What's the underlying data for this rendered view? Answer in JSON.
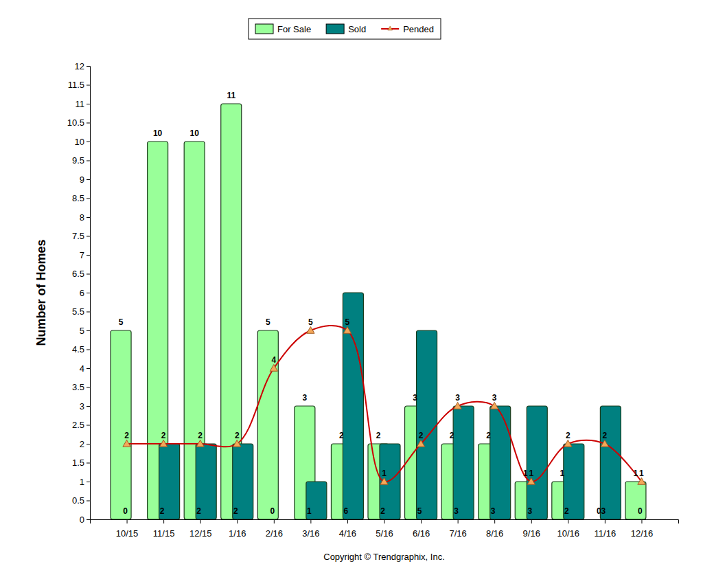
{
  "chart_data": {
    "type": "bar",
    "y_label": "Number of Homes",
    "annotations": [
      "Copyright © Trendgraphix, Inc."
    ],
    "categories": [
      "10/15",
      "11/15",
      "12/15",
      "1/16",
      "2/16",
      "3/16",
      "4/16",
      "5/16",
      "6/16",
      "7/16",
      "8/16",
      "9/16",
      "10/16",
      "11/16",
      "12/16"
    ],
    "series": [
      {
        "name": "For Sale",
        "type": "bar",
        "color": "#99ff99",
        "values": [
          5,
          10,
          10,
          11,
          5,
          3,
          2,
          2,
          3,
          2,
          2,
          1,
          1,
          0,
          1
        ]
      },
      {
        "name": "Sold",
        "type": "bar",
        "color": "#008080",
        "values": [
          0,
          2,
          2,
          2,
          0,
          1,
          6,
          2,
          5,
          3,
          3,
          3,
          2,
          3,
          0
        ]
      },
      {
        "name": "Pended",
        "type": "line",
        "color": "#cc0000",
        "marker": "triangle",
        "values": [
          2,
          2,
          2,
          2,
          4,
          5,
          5,
          1,
          2,
          3,
          3,
          1,
          2,
          2,
          1
        ]
      }
    ],
    "ylim": [
      0,
      12
    ],
    "yticks": [
      0,
      0.5,
      1,
      1.5,
      2,
      2.5,
      3,
      3.5,
      4,
      4.5,
      5,
      5.5,
      6,
      6.5,
      7,
      7.5,
      8,
      8.5,
      9,
      9.5,
      10,
      10.5,
      11,
      11.5,
      12
    ],
    "grid": false,
    "legend": "top",
    "data_labels": true
  }
}
